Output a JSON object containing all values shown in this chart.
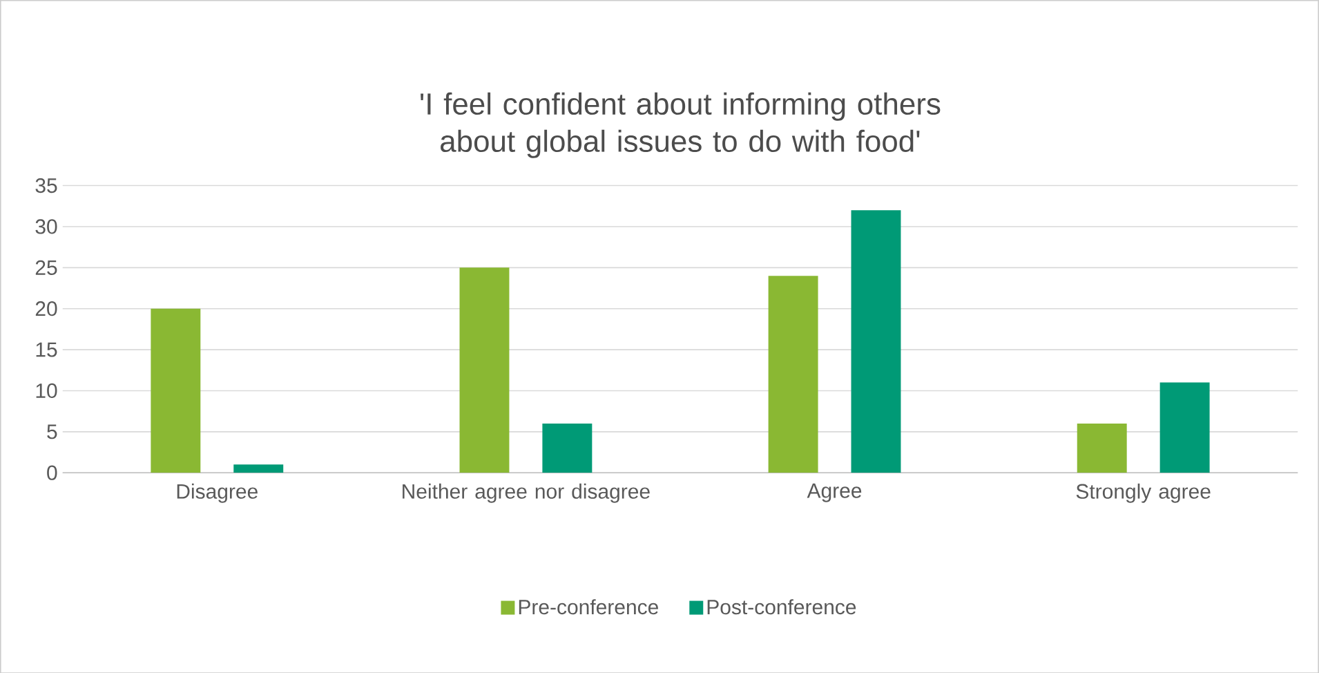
{
  "chart_data": {
    "type": "bar",
    "title": "'I feel confident about informing others about global issues to do with food'",
    "categories": [
      "Disagree",
      "Neither agree nor disagree",
      "Agree",
      "Strongly agree"
    ],
    "series": [
      {
        "name": "Pre-conference",
        "color": "#8ab833",
        "values": [
          20,
          25,
          24,
          6
        ]
      },
      {
        "name": "Post-conference",
        "color": "#009a76",
        "values": [
          1,
          6,
          32,
          11
        ]
      }
    ],
    "ylim": [
      0,
      35
    ],
    "yticks": [
      0,
      5,
      10,
      15,
      20,
      25,
      30,
      35
    ],
    "grid": "y",
    "legend": "bottom"
  }
}
